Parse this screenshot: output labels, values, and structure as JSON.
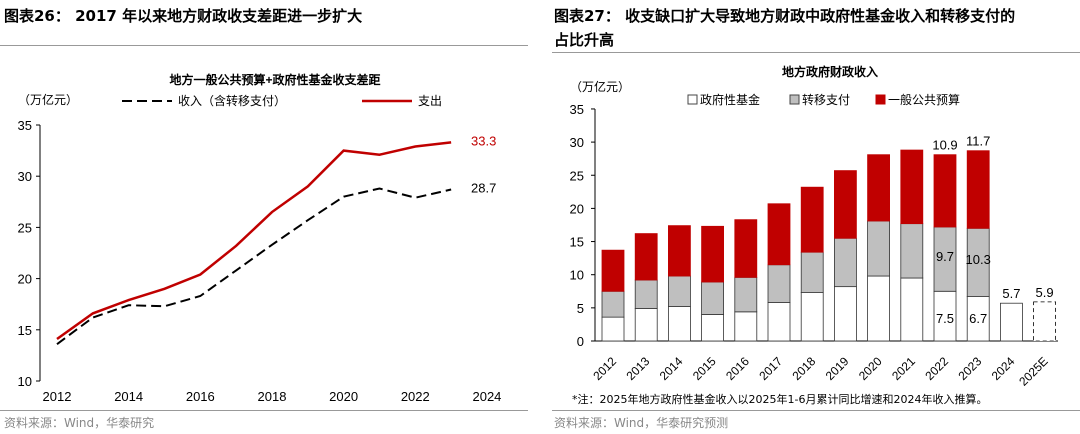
{
  "left": {
    "title": "图表26： 2017 年以来地方财政收支差距进一步扩大",
    "source": "资料来源：Wind，华泰研究"
  },
  "right": {
    "title_line1": "图表27： 收支缺口扩大导致地方财政中政府性基金收入和转移支付的",
    "title_line2": "占比升高",
    "note": "*注：2025年地方政府性基金收入以2025年1-6月累计同比增速和2024年收入推算。",
    "source": "资料来源：Wind，华泰研究预测"
  },
  "chart_data": [
    {
      "type": "line",
      "title": "地方一般公共预算+政府性基金收支差距",
      "ylabel": "（万亿元）",
      "ylim": [
        10,
        35
      ],
      "yticks": [
        "10",
        "15",
        "20",
        "25",
        "30",
        "35"
      ],
      "xticks": [
        "2012",
        "2014",
        "2016",
        "2018",
        "2020",
        "2022",
        "2024"
      ],
      "x": [
        2012,
        2013,
        2014,
        2015,
        2016,
        2017,
        2018,
        2019,
        2020,
        2021,
        2022,
        2023
      ],
      "series": [
        {
          "name": "收入（含转移支付）",
          "style": "dashed",
          "color": "#000000",
          "values": [
            13.6,
            16.2,
            17.4,
            17.3,
            18.3,
            20.8,
            23.3,
            25.7,
            28.0,
            28.8,
            27.9,
            28.7
          ],
          "end_label": "28.7"
        },
        {
          "name": "支出",
          "style": "solid",
          "color": "#C00000",
          "values": [
            14.1,
            16.6,
            17.9,
            19.0,
            20.4,
            23.2,
            26.5,
            29.0,
            32.5,
            32.1,
            32.9,
            33.3
          ],
          "end_label": "33.3"
        }
      ],
      "legend": "top"
    },
    {
      "type": "bar",
      "stacked": true,
      "title": "地方政府财政收入",
      "ylabel": "（万亿元）",
      "ylim": [
        0,
        35
      ],
      "yticks": [
        "0",
        "5",
        "10",
        "15",
        "20",
        "25",
        "30",
        "35"
      ],
      "categories": [
        "2012",
        "2013",
        "2014",
        "2015",
        "2016",
        "2017",
        "2018",
        "2019",
        "2020",
        "2021",
        "2022",
        "2023",
        "2024",
        "2025E"
      ],
      "series": [
        {
          "name": "政府性基金",
          "color": "#FFFFFF",
          "values": [
            3.6,
            4.9,
            5.2,
            4.0,
            4.4,
            5.8,
            7.3,
            8.2,
            9.8,
            9.5,
            7.5,
            6.7,
            5.7,
            5.9
          ]
        },
        {
          "name": "转移支付",
          "color": "#BFBFBF",
          "values": [
            3.9,
            4.3,
            4.6,
            4.9,
            5.2,
            5.7,
            6.1,
            7.3,
            8.3,
            8.2,
            9.7,
            10.3,
            null,
            null
          ]
        },
        {
          "name": "一般公共预算",
          "color": "#C00000",
          "values": [
            6.2,
            7.0,
            7.6,
            8.4,
            8.7,
            9.2,
            9.8,
            10.2,
            10.0,
            11.1,
            10.9,
            11.7,
            null,
            null
          ]
        }
      ],
      "data_labels": [
        {
          "category": "2022",
          "series": "政府性基金",
          "text": "7.5"
        },
        {
          "category": "2022",
          "series": "转移支付",
          "text": "9.7"
        },
        {
          "category": "2022",
          "series": "一般公共预算",
          "text": "10.9"
        },
        {
          "category": "2023",
          "series": "政府性基金",
          "text": "6.7"
        },
        {
          "category": "2023",
          "series": "转移支付",
          "text": "10.3"
        },
        {
          "category": "2023",
          "series": "一般公共预算",
          "text": "11.7"
        },
        {
          "category": "2024",
          "series": "政府性基金",
          "text": "5.7"
        },
        {
          "category": "2025E",
          "series": "政府性基金",
          "text": "5.9"
        }
      ],
      "estimated_category": "2025E",
      "legend": "top"
    }
  ]
}
